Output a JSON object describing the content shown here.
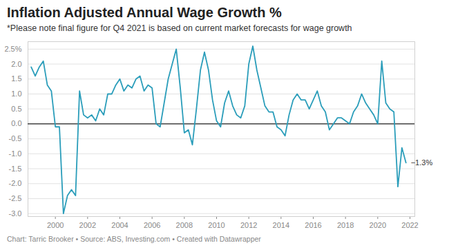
{
  "chart_data": {
    "type": "line",
    "title": "Inflation Adjusted Annual Wage Growth %",
    "subtitle": "*Please note final figure for Q4 2021 is based on current market forecasts for wage growth",
    "caption": "Chart: Tarric Brooker • Source: ABS, Investing.com • Created with Datawrapper",
    "x": [
      1998.5,
      1998.75,
      1999,
      1999.25,
      1999.5,
      1999.75,
      2000,
      2000.25,
      2000.5,
      2000.75,
      2001,
      2001.25,
      2001.5,
      2001.75,
      2002,
      2002.25,
      2002.5,
      2002.75,
      2003,
      2003.25,
      2003.5,
      2003.75,
      2004,
      2004.25,
      2004.5,
      2004.75,
      2005,
      2005.25,
      2005.5,
      2005.75,
      2006,
      2006.25,
      2006.5,
      2006.75,
      2007,
      2007.25,
      2007.5,
      2007.75,
      2008,
      2008.25,
      2008.5,
      2008.75,
      2009,
      2009.25,
      2009.5,
      2009.75,
      2010,
      2010.25,
      2010.5,
      2010.75,
      2011,
      2011.25,
      2011.5,
      2011.75,
      2012,
      2012.25,
      2012.5,
      2012.75,
      2013,
      2013.25,
      2013.5,
      2013.75,
      2014,
      2014.25,
      2014.5,
      2014.75,
      2015,
      2015.25,
      2015.5,
      2015.75,
      2016,
      2016.25,
      2016.5,
      2016.75,
      2017,
      2017.25,
      2017.5,
      2017.75,
      2018,
      2018.25,
      2018.5,
      2018.75,
      2019,
      2019.25,
      2019.5,
      2019.75,
      2020,
      2020.25,
      2020.5,
      2020.75,
      2021,
      2021.25,
      2021.5,
      2021.75
    ],
    "values": [
      1.9,
      1.6,
      1.9,
      2.1,
      1.3,
      1.1,
      -0.1,
      -0.1,
      -3.0,
      -2.4,
      -2.2,
      -2.4,
      1.1,
      0.3,
      0.2,
      0.3,
      0.1,
      0.5,
      0.3,
      1.0,
      1.0,
      1.3,
      1.5,
      1.1,
      1.3,
      1.2,
      1.5,
      1.6,
      1.1,
      1.3,
      1.2,
      0.0,
      -0.1,
      0.7,
      1.5,
      2.0,
      2.5,
      1.2,
      -0.3,
      -0.2,
      -0.7,
      0.5,
      1.8,
      2.4,
      1.8,
      0.8,
      0.1,
      -0.1,
      0.7,
      1.1,
      0.6,
      0.3,
      0.2,
      0.6,
      2.0,
      2.6,
      1.8,
      1.2,
      0.6,
      0.4,
      0.4,
      -0.1,
      -0.2,
      -0.4,
      0.3,
      0.8,
      1.0,
      0.8,
      0.8,
      0.5,
      0.8,
      1.1,
      0.6,
      0.4,
      -0.2,
      0.0,
      0.2,
      0.2,
      0.1,
      0.0,
      0.4,
      0.6,
      1.0,
      0.7,
      0.5,
      0.3,
      0.0,
      2.1,
      0.7,
      0.5,
      0.4,
      -2.1,
      -0.8,
      -1.3
    ],
    "color": "#2a9dba",
    "xlim": [
      1998.3,
      2022.3
    ],
    "xticks": [
      2000,
      2002,
      2004,
      2006,
      2008,
      2010,
      2012,
      2014,
      2016,
      2018,
      2020,
      2022
    ],
    "ylim": [
      -3.1,
      2.75
    ],
    "yticks": [
      {
        "value": -3.0,
        "label": "-3.0"
      },
      {
        "value": -2.5,
        "label": "-2.5"
      },
      {
        "value": -2.0,
        "label": "-2.0"
      },
      {
        "value": -1.5,
        "label": "-1.5"
      },
      {
        "value": -1.0,
        "label": "-1.0"
      },
      {
        "value": -0.5,
        "label": "-0.5"
      },
      {
        "value": 0,
        "label": "0.0"
      },
      {
        "value": 0.5,
        "label": "0.5"
      },
      {
        "value": 1.0,
        "label": "1.0"
      },
      {
        "value": 1.5,
        "label": "1.5"
      },
      {
        "value": 2.0,
        "label": "2.0"
      },
      {
        "value": 2.5,
        "label": "2.5%"
      }
    ],
    "grid": true,
    "annotations": [
      {
        "x": 2021.75,
        "y": -1.3,
        "text": "−1.3%"
      }
    ]
  }
}
